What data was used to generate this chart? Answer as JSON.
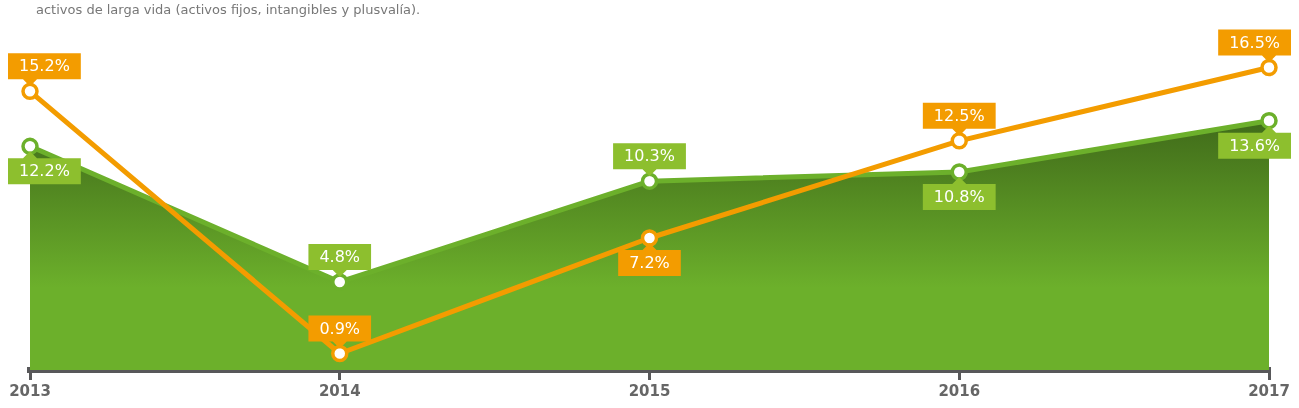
{
  "chart_data": {
    "type": "line",
    "subtitle": "activos de larga vida (activos fijos, intangibles y plusvalía).",
    "categories": [
      "2013",
      "2014",
      "2015",
      "2016",
      "2017"
    ],
    "series": [
      {
        "type": "area",
        "color": "#6cb02b",
        "values": [
          12.2,
          4.8,
          10.3,
          10.8,
          13.6
        ],
        "value_labels": [
          "12.2%",
          "4.8%",
          "10.3%",
          "10.8%",
          "13.6%"
        ]
      },
      {
        "type": "line",
        "color": "#f39c00",
        "values": [
          15.2,
          0.9,
          7.2,
          12.5,
          16.5
        ],
        "value_labels": [
          "15.2%",
          "0.9%",
          "7.2%",
          "12.5%",
          "16.5%"
        ]
      }
    ],
    "tick_labels": "x",
    "marker": "circle",
    "line_style": "solid"
  }
}
